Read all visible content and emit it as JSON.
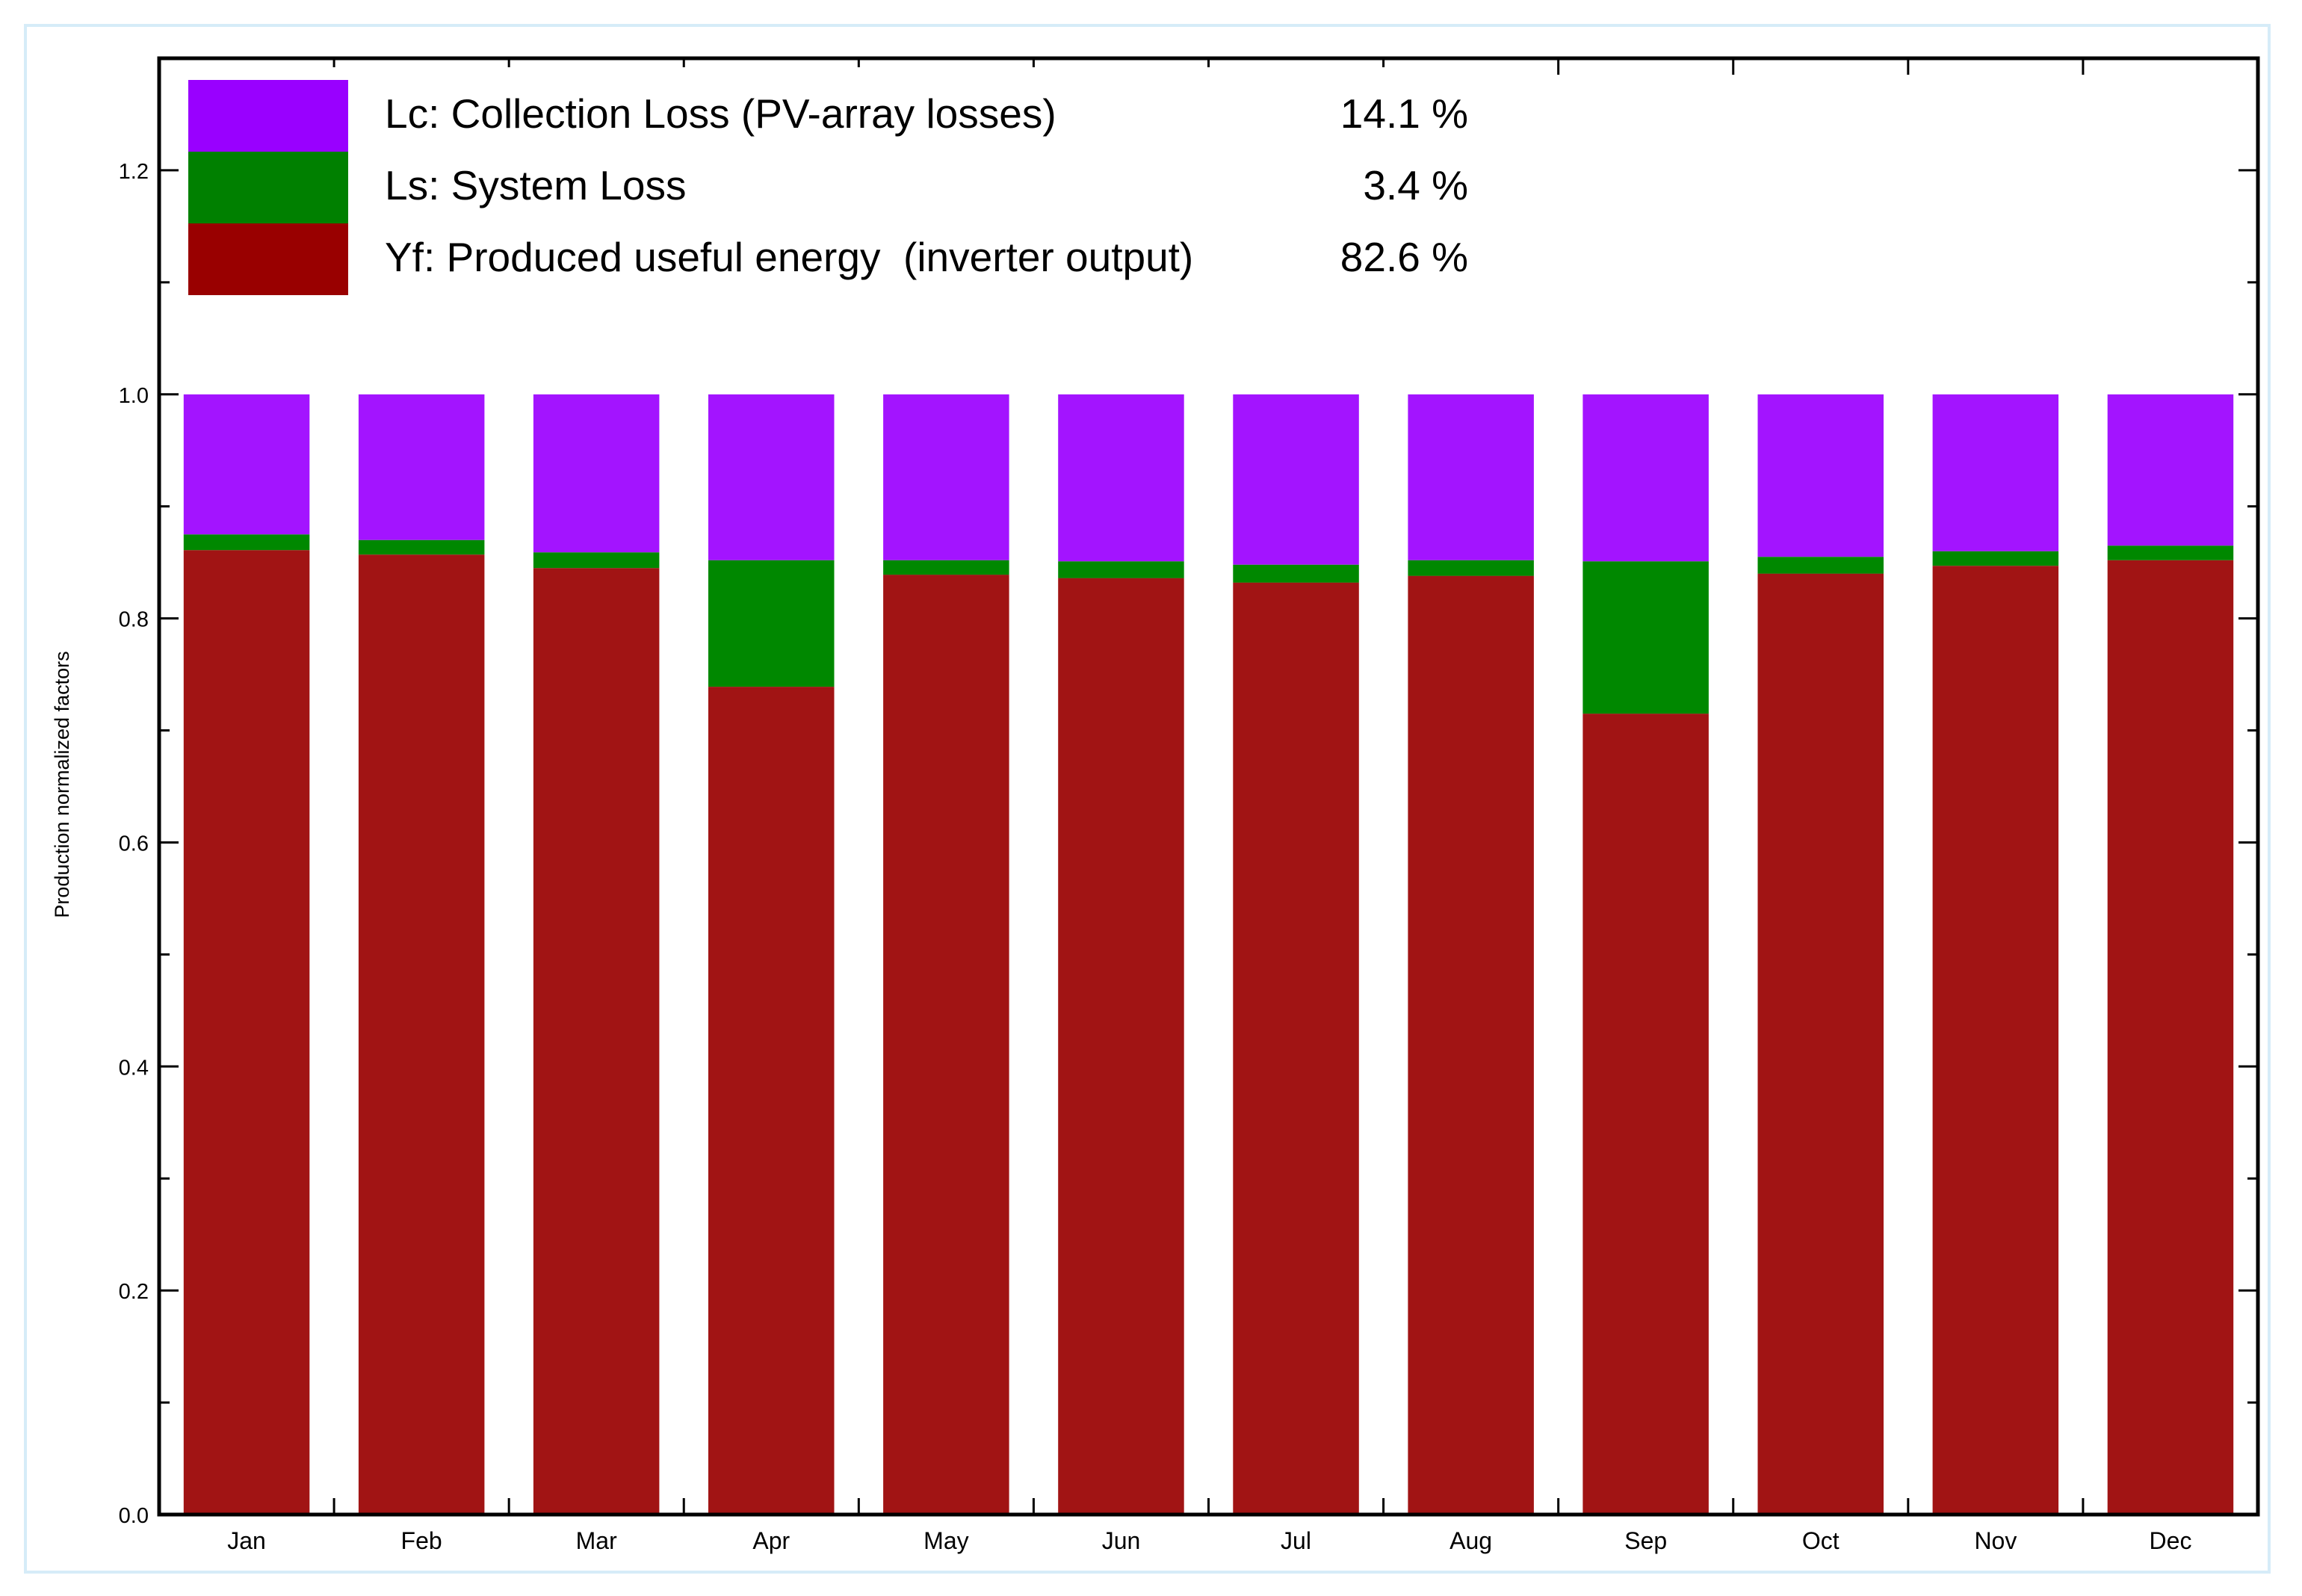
{
  "chart_data": {
    "type": "bar",
    "stacked": true,
    "ylabel": "Production normalized factors",
    "xlabel": "",
    "ylim": [
      0,
      1.3
    ],
    "yticks": [
      "0.0",
      "0.2",
      "0.4",
      "0.6",
      "0.8",
      "1.0",
      "1.2"
    ],
    "ytick_values": [
      0,
      0.2,
      0.4,
      0.6,
      0.8,
      1.0,
      1.2
    ],
    "categories": [
      "Jan",
      "Feb",
      "Mar",
      "Apr",
      "May",
      "Jun",
      "Jul",
      "Aug",
      "Sep",
      "Oct",
      "Nov",
      "Dec"
    ],
    "series": [
      {
        "name": "Yf: Produced useful energy  (inverter output)",
        "short": "Yf",
        "percent": "82.6 %",
        "color": "#a11414",
        "legend_color": "#990000",
        "values": [
          0.861,
          0.857,
          0.845,
          0.739,
          0.839,
          0.836,
          0.832,
          0.838,
          0.715,
          0.84,
          0.847,
          0.852
        ]
      },
      {
        "name": "Ls: System Loss",
        "short": "Ls",
        "percent": "3.4 %",
        "color": "#008800",
        "legend_color": "#008000",
        "values": [
          0.014,
          0.013,
          0.014,
          0.113,
          0.013,
          0.015,
          0.016,
          0.014,
          0.136,
          0.015,
          0.013,
          0.013
        ]
      },
      {
        "name": "Lc: Collection Loss (PV-array losses)",
        "short": "Lc",
        "percent": "14.1 %",
        "color": "#a314ff",
        "legend_color": "#9900ff",
        "values": [
          0.125,
          0.13,
          0.141,
          0.148,
          0.148,
          0.149,
          0.152,
          0.148,
          0.149,
          0.145,
          0.14,
          0.135
        ]
      }
    ],
    "legend_order": [
      "Lc",
      "Ls",
      "Yf"
    ],
    "legend_placement": "top-left",
    "grid": false
  }
}
